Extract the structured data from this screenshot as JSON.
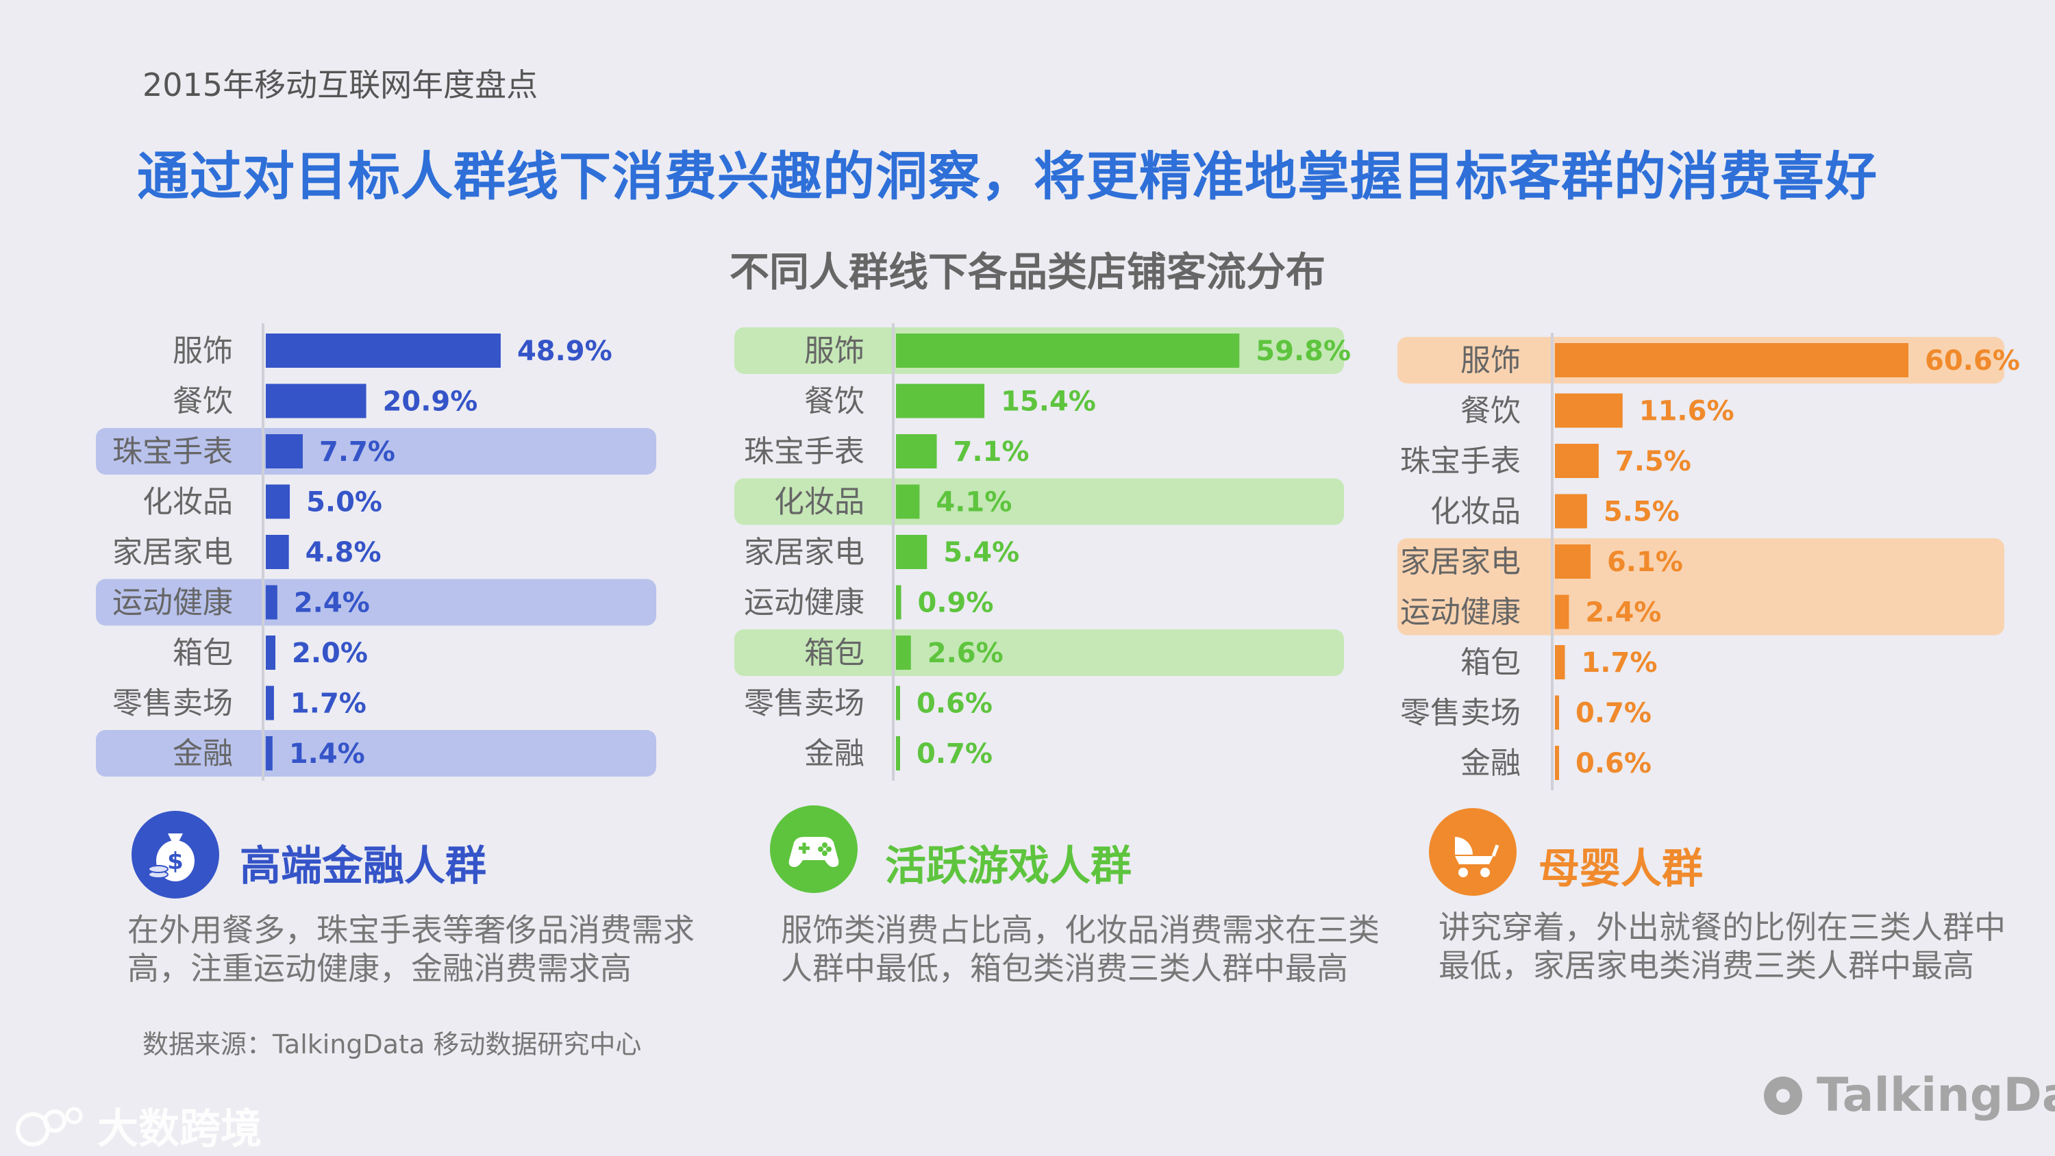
{
  "header": {
    "report_name": "2015年移动互联网年度盘点",
    "headline": "通过对目标人群线下消费兴趣的洞察，将更精准地掌握目标客群的消费喜好"
  },
  "chart_data": {
    "type": "bar",
    "title": "不同人群线下各品类店铺客流分布",
    "orientation": "horizontal",
    "categories": [
      "服饰",
      "餐饮",
      "珠宝手表",
      "化妆品",
      "家居家电",
      "运动健康",
      "箱包",
      "零售卖场",
      "金融"
    ],
    "series": [
      {
        "name": "高端金融人群",
        "color": "#3554c8",
        "highlight_color": "#b8c2ec",
        "values": [
          48.9,
          20.9,
          7.7,
          5.0,
          4.8,
          2.4,
          2.0,
          1.7,
          1.4
        ],
        "labels": [
          "48.9%",
          "20.9%",
          "7.7%",
          "5.0%",
          "4.8%",
          "2.4%",
          "2.0%",
          "1.7%",
          "1.4%"
        ],
        "highlighted_categories": [
          "珠宝手表",
          "运动健康",
          "金融"
        ]
      },
      {
        "name": "活跃游戏人群",
        "color": "#5ec43e",
        "highlight_color": "#c5e8b6",
        "values": [
          59.8,
          15.4,
          7.1,
          4.1,
          5.4,
          0.9,
          2.6,
          0.6,
          0.7
        ],
        "labels": [
          "59.8%",
          "15.4%",
          "7.1%",
          "4.1%",
          "5.4%",
          "0.9%",
          "2.6%",
          "0.6%",
          "0.7%"
        ],
        "highlighted_categories": [
          "服饰",
          "化妆品",
          "箱包"
        ]
      },
      {
        "name": "母婴人群",
        "color": "#f08a2c",
        "highlight_color": "#f9d3b0",
        "values": [
          60.6,
          11.6,
          7.5,
          5.5,
          6.1,
          2.4,
          1.7,
          0.7,
          0.6
        ],
        "labels": [
          "60.6%",
          "11.6%",
          "7.5%",
          "5.5%",
          "6.1%",
          "2.4%",
          "1.7%",
          "0.7%",
          "0.6%"
        ],
        "highlighted_categories": [
          "服饰",
          "家居家电",
          "运动健康"
        ]
      }
    ],
    "xlim": [
      0,
      60.6
    ]
  },
  "groups": [
    {
      "title": "高端金融人群",
      "icon": "money-bag-icon",
      "color": "#3554c8",
      "desc_line1": "在外用餐多，珠宝手表等奢侈品消费需求",
      "desc_line2": "高，注重运动健康，金融消费需求高"
    },
    {
      "title": "活跃游戏人群",
      "icon": "gamepad-icon",
      "color": "#5ec43e",
      "desc_line1": "服饰类消费占比高，化妆品消费需求在三类",
      "desc_line2": "人群中最低，箱包类消费三类人群中最高"
    },
    {
      "title": "母婴人群",
      "icon": "baby-stroller-icon",
      "color": "#f08a2c",
      "desc_line1": "讲究穿着，外出就餐的比例在三类人群中",
      "desc_line2": "最低，家居家电类消费三类人群中最高"
    }
  ],
  "footer": {
    "source": "数据来源：TalkingData 移动数据研究中心",
    "watermark_left": "大数跨境",
    "watermark_right": "TalkingData"
  }
}
